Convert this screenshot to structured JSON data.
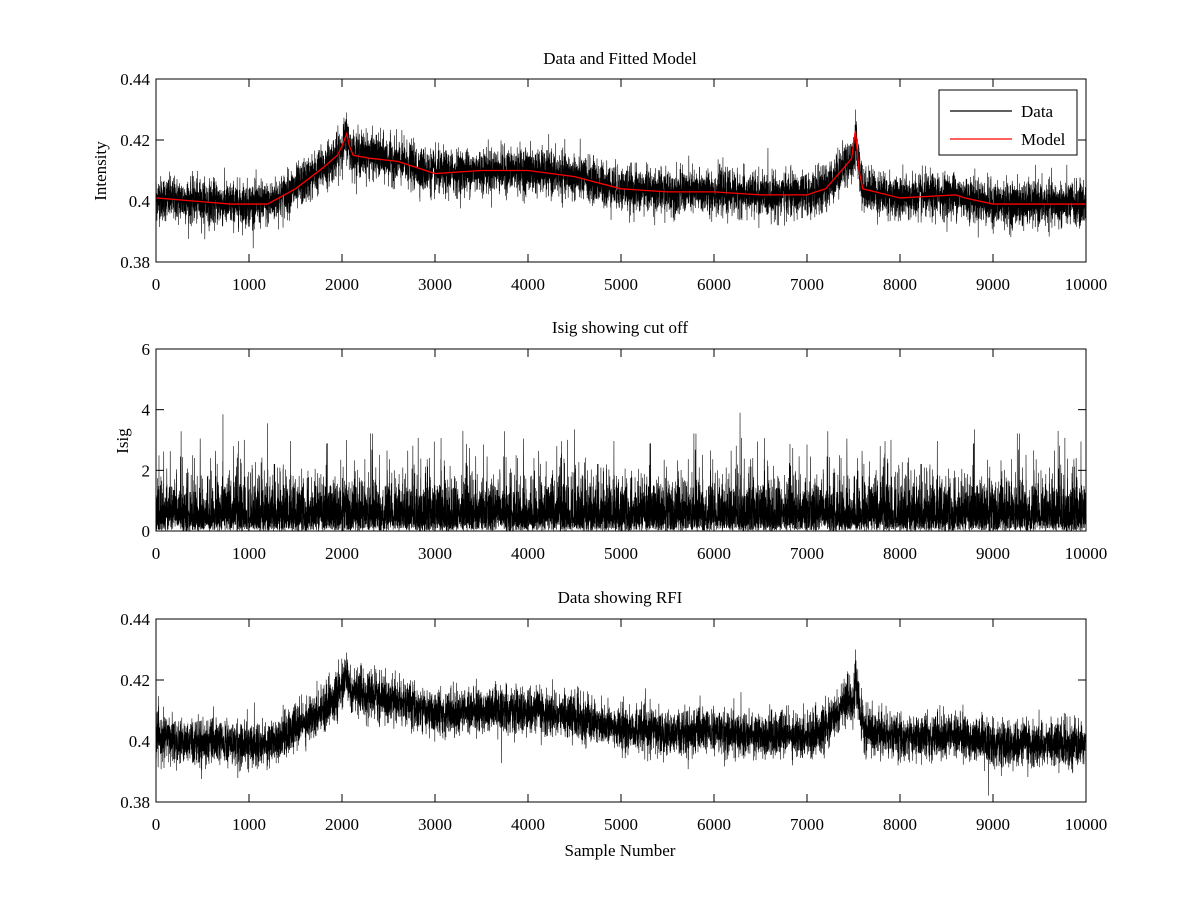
{
  "chart_data": [
    {
      "type": "line",
      "title": "Data and Fitted Model",
      "xlabel": "",
      "ylabel": "Intensity",
      "xlim": [
        0,
        10000
      ],
      "ylim": [
        0.38,
        0.44
      ],
      "xticks": [
        "0",
        "1000",
        "2000",
        "3000",
        "4000",
        "5000",
        "6000",
        "7000",
        "8000",
        "9000",
        "10000"
      ],
      "yticks": [
        "0.38",
        "0.4",
        "0.42",
        "0.44"
      ],
      "legend": {
        "position": "top-right",
        "entries": [
          "Data",
          "Model"
        ]
      },
      "series": [
        {
          "name": "Data",
          "color": "#000000",
          "kind": "noisy",
          "noise": 0.004,
          "baseline_x": [
            0,
            400,
            800,
            1200,
            1500,
            1800,
            1950,
            2050,
            2100,
            2300,
            2600,
            3000,
            3500,
            4000,
            4500,
            5000,
            5500,
            6000,
            6500,
            7000,
            7200,
            7400,
            7500,
            7520,
            7600,
            8000,
            8600,
            9000,
            10000
          ],
          "baseline_y": [
            0.401,
            0.4,
            0.399,
            0.399,
            0.404,
            0.411,
            0.415,
            0.421,
            0.416,
            0.415,
            0.413,
            0.409,
            0.41,
            0.41,
            0.408,
            0.404,
            0.403,
            0.403,
            0.402,
            0.402,
            0.404,
            0.412,
            0.414,
            0.42,
            0.404,
            0.401,
            0.402,
            0.399,
            0.399
          ],
          "spikes": [
            [
              2050,
              0.429
            ],
            [
              7520,
              0.43
            ]
          ]
        },
        {
          "name": "Model",
          "color": "#ff0000",
          "kind": "smooth",
          "x": [
            0,
            400,
            800,
            1200,
            1500,
            1800,
            1950,
            2000,
            2050,
            2080,
            2120,
            2300,
            2600,
            3000,
            3500,
            4000,
            4500,
            5000,
            5500,
            6000,
            6500,
            7000,
            7200,
            7400,
            7480,
            7520,
            7560,
            7600,
            8000,
            8600,
            8700,
            9000,
            10000
          ],
          "y": [
            0.401,
            0.4,
            0.399,
            0.399,
            0.404,
            0.411,
            0.415,
            0.418,
            0.422,
            0.418,
            0.415,
            0.414,
            0.413,
            0.409,
            0.41,
            0.41,
            0.408,
            0.404,
            0.403,
            0.403,
            0.402,
            0.402,
            0.404,
            0.411,
            0.414,
            0.423,
            0.41,
            0.404,
            0.401,
            0.402,
            0.401,
            0.399,
            0.399
          ]
        }
      ]
    },
    {
      "type": "line",
      "title": "Isig showing cut off",
      "xlabel": "",
      "ylabel": "Isig",
      "xlim": [
        0,
        10000
      ],
      "ylim": [
        0,
        6
      ],
      "xticks": [
        "0",
        "1000",
        "2000",
        "3000",
        "4000",
        "5000",
        "6000",
        "7000",
        "8000",
        "9000",
        "10000"
      ],
      "yticks": [
        "0",
        "2",
        "4",
        "6"
      ],
      "series": [
        {
          "name": "",
          "color": "#000000",
          "kind": "isig",
          "spikes": [
            [
              720,
              3.85
            ],
            [
              1200,
              3.55
            ],
            [
              6280,
              3.9
            ],
            [
              4500,
              3.35
            ],
            [
              3300,
              3.3
            ],
            [
              8800,
              3.35
            ],
            [
              9700,
              3.3
            ],
            [
              2050,
              3.0
            ]
          ]
        }
      ]
    },
    {
      "type": "line",
      "title": "Data showing RFI",
      "xlabel": "Sample Number",
      "ylabel": "",
      "xlim": [
        0,
        10000
      ],
      "ylim": [
        0.38,
        0.44
      ],
      "xticks": [
        "0",
        "1000",
        "2000",
        "3000",
        "4000",
        "5000",
        "6000",
        "7000",
        "8000",
        "9000",
        "10000"
      ],
      "yticks": [
        "0.38",
        "0.4",
        "0.42",
        "0.44"
      ],
      "series": [
        {
          "name": "",
          "color": "#000000",
          "kind": "noisy",
          "noise": 0.004,
          "baseline_x": [
            0,
            400,
            800,
            1200,
            1500,
            1800,
            1950,
            2050,
            2100,
            2300,
            2600,
            3000,
            3500,
            4000,
            4500,
            5000,
            5500,
            6000,
            6500,
            7000,
            7200,
            7400,
            7500,
            7520,
            7600,
            8000,
            8600,
            9000,
            10000
          ],
          "baseline_y": [
            0.401,
            0.4,
            0.399,
            0.399,
            0.404,
            0.411,
            0.415,
            0.421,
            0.416,
            0.415,
            0.413,
            0.409,
            0.41,
            0.41,
            0.408,
            0.404,
            0.403,
            0.403,
            0.402,
            0.402,
            0.404,
            0.412,
            0.414,
            0.42,
            0.404,
            0.401,
            0.402,
            0.399,
            0.399
          ],
          "spikes": [
            [
              2050,
              0.429
            ],
            [
              7520,
              0.43
            ]
          ]
        }
      ]
    }
  ]
}
